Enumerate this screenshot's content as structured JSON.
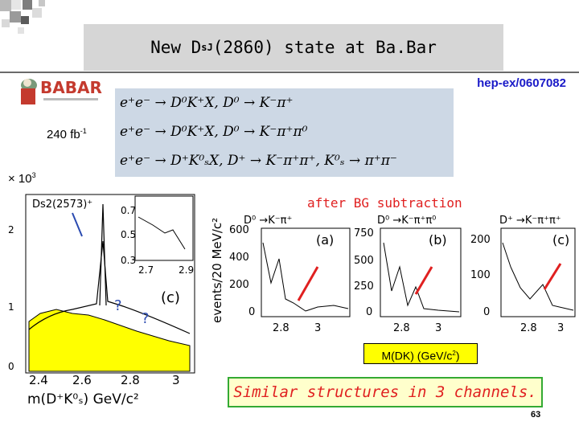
{
  "title_text": "New D",
  "title_sub": "sJ",
  "title_rest": "(2860) state at Ba.Bar",
  "reference": "hep-ex/0607082",
  "logo": {
    "text": "BABAR"
  },
  "equations": [
    "e⁺e⁻ → D⁰K⁺X, D⁰ → K⁻π⁺",
    "e⁺e⁻ → D⁰K⁺X, D⁰ → K⁻π⁺π⁰",
    "e⁺e⁻ → D⁺K⁰ₛX, D⁺ → K⁻π⁺π⁺, K⁰ₛ → π⁺π⁻"
  ],
  "luminosity": {
    "value": "240 fb",
    "exp": "-1"
  },
  "scale": {
    "prefix": "× 10",
    "exp": "3"
  },
  "left_plot": {
    "inset_label": "Ds2(2573)⁺",
    "inset_y_ticks": [
      "0.7",
      "0.5",
      "0.3"
    ],
    "inset_x_ticks": [
      "2.7",
      "2.9"
    ],
    "y_ticks": [
      "2",
      "1",
      "0"
    ],
    "x_ticks": [
      "2.4",
      "2.6",
      "2.8",
      "3"
    ],
    "x_label": "m(D⁺K⁰ₛ) GeV/c²",
    "question_marks": [
      "?",
      "?"
    ],
    "panel_label": "(c)"
  },
  "after_bg": "after BG subtraction",
  "y_axis_label": "events/20 MeV/c²",
  "panels": [
    {
      "channel": "D⁰ →K⁻π⁺",
      "label": "(a)",
      "y_ticks": [
        "600",
        "400",
        "200",
        "0"
      ],
      "x_ticks": [
        "2.8",
        "3"
      ]
    },
    {
      "channel": "D⁰ →K⁻π⁺π⁰",
      "label": "(b)",
      "y_ticks": [
        "750",
        "500",
        "250",
        "0"
      ],
      "x_ticks": [
        "2.8",
        "3"
      ]
    },
    {
      "channel": "D⁺ →K⁻π⁺π⁺",
      "label": "(c)",
      "y_ticks": [
        "200",
        "100",
        "0"
      ],
      "x_ticks": [
        "2.8",
        "3"
      ]
    }
  ],
  "mdk": {
    "text": "M(DK) (GeV/c",
    "exp": "2",
    "close": ")"
  },
  "conclusion": "Similar structures in 3 channels.",
  "page_number": "63",
  "colors": {
    "accent_red": "#e02020",
    "ref_blue": "#1a1ac8",
    "hist_yellow": "#ffff00",
    "eq_box": "#cdd8e5"
  }
}
